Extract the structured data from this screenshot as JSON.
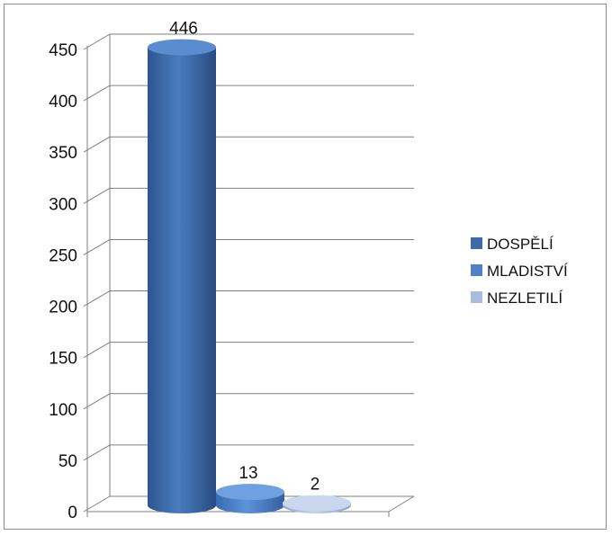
{
  "chart_data": {
    "type": "bar",
    "style": "3d-cylinder",
    "categories": [
      "DOSPĚLÍ",
      "MLADISTVÍ",
      "NEZLETILÍ"
    ],
    "values": [
      446,
      13,
      2
    ],
    "data_labels": [
      "446",
      "13",
      "2"
    ],
    "colors": [
      "#3d6aa8",
      "#4f81c6",
      "#a9bedf"
    ],
    "ylim": [
      0,
      450
    ],
    "yticks": [
      "0",
      "50",
      "100",
      "150",
      "200",
      "250",
      "300",
      "350",
      "400",
      "450"
    ],
    "grid": true,
    "legend": {
      "position": "right",
      "entries": [
        "DOSPĚLÍ",
        "MLADISTVÍ",
        "NEZLETILÍ"
      ]
    }
  }
}
